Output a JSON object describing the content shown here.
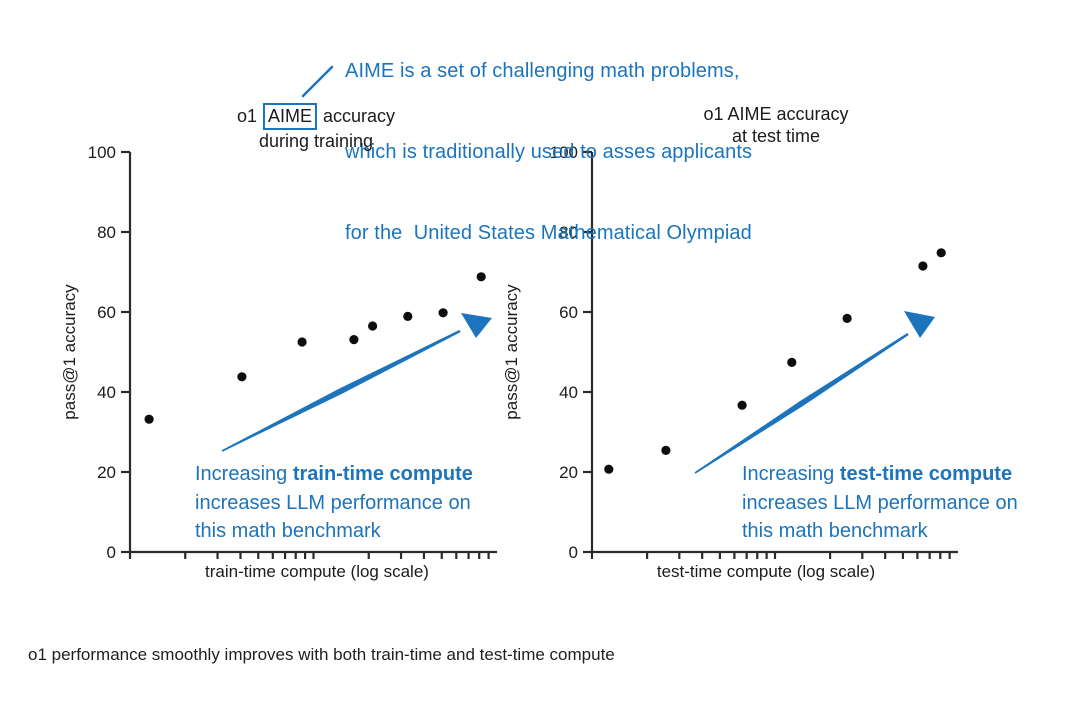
{
  "colors": {
    "accent": "#1b74bc",
    "dot": "#0d0d0d",
    "axis": "#2b2b2b",
    "text": "#1c1c1c"
  },
  "note": {
    "lines": [
      "AIME is a set of challenging math problems,",
      "which is traditionally used to asses applicants",
      "for the  United States Mathematical Olympiad"
    ]
  },
  "left_chart": {
    "title": {
      "prefix": "o1 ",
      "boxed": "AIME",
      "suffix": " accuracy",
      "line2": "during training"
    },
    "callout": {
      "lead": "Increasing ",
      "bold": "train-time compute",
      "line2": "increases LLM performance on",
      "line3": "this math benchmark"
    }
  },
  "right_chart": {
    "title": {
      "line1": "o1 AIME accuracy",
      "line2": "at test time"
    },
    "callout": {
      "lead": "Increasing ",
      "bold": "test-time compute",
      "line2": "increases LLM performance on",
      "line3": "this math benchmark"
    }
  },
  "caption": {
    "text": "o1 performance smoothly improves with both train-time and test-time compute"
  },
  "chart_data": [
    {
      "type": "scatter",
      "title": "o1 AIME accuracy during training",
      "xlabel": "train-time compute (log scale)",
      "ylabel": "pass@1 accuracy",
      "x_scale": "log",
      "x_axis_numeric_labels": false,
      "x_minor_tick_values": [
        1,
        2,
        3,
        4,
        5,
        6,
        7,
        8,
        9,
        10,
        20,
        30,
        40,
        50,
        60,
        70,
        80,
        90
      ],
      "ylim": [
        0,
        100
      ],
      "yticks": [
        0,
        20,
        40,
        60,
        80,
        100
      ],
      "points": [
        {
          "x_fraction": 0.052,
          "y": 33.2
        },
        {
          "x_fraction": 0.305,
          "y": 43.8
        },
        {
          "x_fraction": 0.469,
          "y": 52.5
        },
        {
          "x_fraction": 0.61,
          "y": 53.1
        },
        {
          "x_fraction": 0.661,
          "y": 56.5
        },
        {
          "x_fraction": 0.757,
          "y": 58.9
        },
        {
          "x_fraction": 0.853,
          "y": 59.8
        },
        {
          "x_fraction": 0.957,
          "y": 68.8
        }
      ],
      "annotation": "Increasing train-time compute increases LLM performance on this math benchmark",
      "legend": null,
      "grid": false
    },
    {
      "type": "scatter",
      "title": "o1 AIME accuracy at test time",
      "xlabel": "test-time compute (log scale)",
      "ylabel": "pass@1 accuracy",
      "x_scale": "log",
      "x_axis_numeric_labels": false,
      "x_minor_tick_values": [
        1,
        2,
        3,
        4,
        5,
        6,
        7,
        8,
        9,
        10,
        20,
        30,
        40,
        50,
        60,
        70,
        80,
        90
      ],
      "ylim": [
        0,
        100
      ],
      "yticks": [
        0,
        20,
        40,
        60,
        80,
        100
      ],
      "points": [
        {
          "x_fraction": 0.046,
          "y": 20.7
        },
        {
          "x_fraction": 0.202,
          "y": 25.4
        },
        {
          "x_fraction": 0.41,
          "y": 36.7
        },
        {
          "x_fraction": 0.546,
          "y": 47.4
        },
        {
          "x_fraction": 0.697,
          "y": 58.4
        },
        {
          "x_fraction": 0.904,
          "y": 71.5
        },
        {
          "x_fraction": 0.954,
          "y": 74.8
        }
      ],
      "annotation": "Increasing test-time compute increases LLM performance on this math benchmark",
      "legend": null,
      "grid": false
    }
  ]
}
